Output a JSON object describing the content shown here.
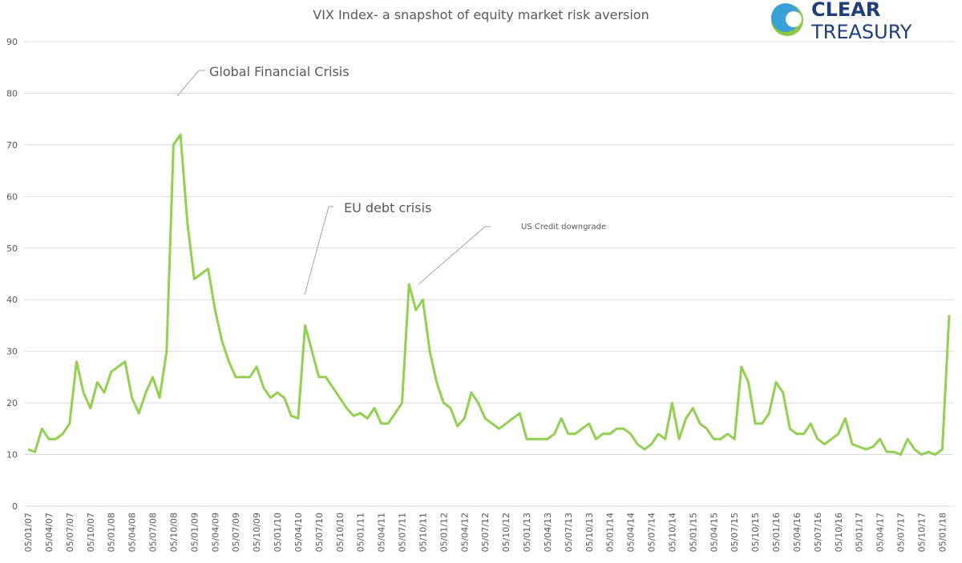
{
  "chart_data": {
    "type": "line",
    "title": "VIX Index- a snapshot of equity market risk aversion",
    "logo": {
      "top": "CLEAR",
      "bottom": "TREASURY"
    },
    "annotations": [
      "Global Financial Crisis",
      "EU debt crisis",
      "US Credit downgrade"
    ],
    "categories": [
      "05/01/07",
      null,
      null,
      "05/04/07",
      null,
      null,
      "05/07/07",
      null,
      null,
      "05/10/07",
      null,
      null,
      "05/01/08",
      null,
      null,
      "05/04/08",
      null,
      null,
      "05/07/08",
      null,
      null,
      "05/10/08",
      null,
      null,
      "05/01/09",
      null,
      null,
      "05/04/09",
      null,
      null,
      "05/07/09",
      null,
      null,
      "05/10/09",
      null,
      null,
      "05/01/10",
      null,
      null,
      "05/04/10",
      null,
      null,
      "05/07/10",
      null,
      null,
      "05/10/10",
      null,
      null,
      "05/01/11",
      null,
      null,
      "05/04/11",
      null,
      null,
      "05/07/11",
      null,
      null,
      "05/10/11",
      null,
      null,
      "05/01/12",
      null,
      null,
      "05/04/12",
      null,
      null,
      "05/07/12",
      null,
      null,
      "05/10/12",
      null,
      null,
      "05/01/13",
      null,
      null,
      "05/04/13",
      null,
      null,
      "05/07/13",
      null,
      null,
      "05/10/13",
      null,
      null,
      "05/01/14",
      null,
      null,
      "05/04/14",
      null,
      null,
      "05/07/14",
      null,
      null,
      "05/10/14",
      null,
      null,
      "05/01/15",
      null,
      null,
      "05/04/15",
      null,
      null,
      "05/07/15",
      null,
      null,
      "05/10/15",
      null,
      null,
      "05/01/16",
      null,
      null,
      "05/04/16",
      null,
      null,
      "05/07/16",
      null,
      null,
      "05/10/16",
      null,
      null,
      "05/01/17",
      null,
      null,
      "05/04/17",
      null,
      null,
      "05/07/17",
      null,
      null,
      "05/10/17",
      null,
      null,
      "05/01/18",
      null
    ],
    "values": [
      11,
      10.5,
      15,
      13,
      13,
      14,
      16,
      28,
      22,
      19,
      24,
      22,
      26,
      27,
      28,
      21,
      18,
      22,
      25,
      21,
      30,
      70,
      72,
      55,
      44,
      45,
      46,
      38,
      32,
      28,
      25,
      25,
      25,
      27,
      23,
      21,
      22,
      21,
      17.5,
      17,
      35,
      30,
      25,
      25,
      23,
      21,
      19,
      17.5,
      18,
      17,
      19,
      16,
      16,
      18,
      20,
      43,
      38,
      40,
      30,
      24,
      20,
      19,
      15.5,
      17,
      22,
      20,
      17,
      16,
      15,
      16,
      17,
      18,
      13,
      13,
      13,
      13,
      14,
      17,
      14,
      14,
      15,
      16,
      13,
      14,
      14,
      15,
      15,
      14,
      12,
      11,
      12,
      14,
      13,
      20,
      13,
      17,
      19,
      16,
      15,
      13,
      13,
      14,
      13,
      27,
      24,
      16,
      16,
      18,
      24,
      22,
      15,
      14,
      14,
      16,
      13,
      12,
      13,
      14,
      17,
      12,
      11.5,
      11,
      11.5,
      13,
      10.5,
      10.5,
      10,
      13,
      11,
      10,
      10.5,
      10,
      11,
      37
    ],
    "color": "#92d050",
    "ylim": [
      0,
      90
    ],
    "yticks": [
      0,
      10,
      20,
      30,
      40,
      50,
      60,
      70,
      80,
      90
    ],
    "grid": true
  }
}
